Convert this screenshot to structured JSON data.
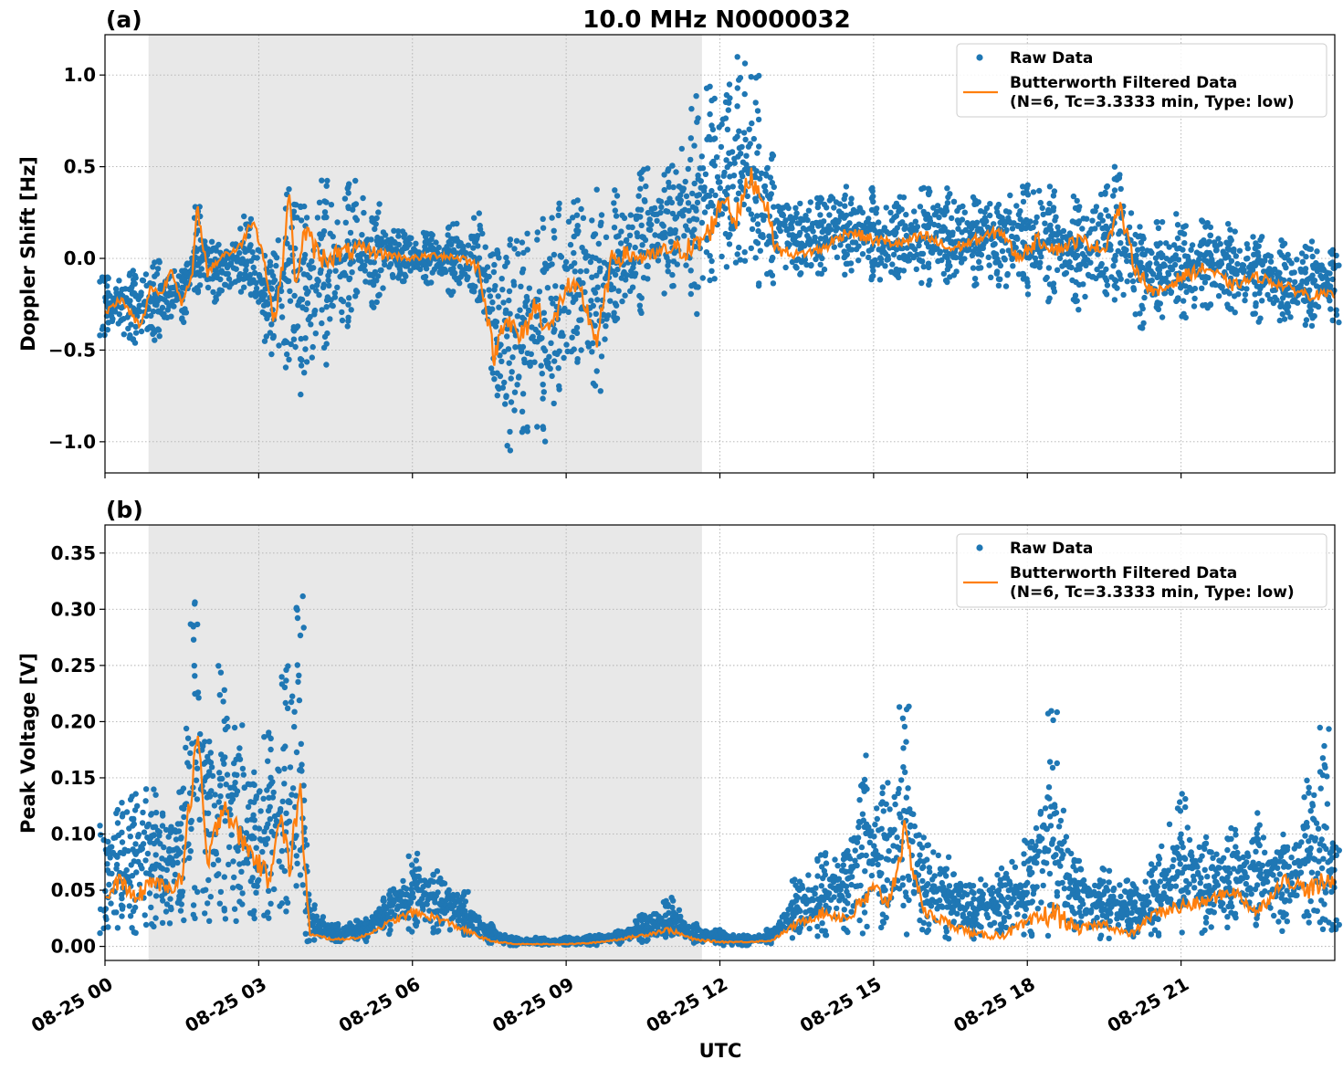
{
  "figure": {
    "title": "10.0 MHz N0000032",
    "xlabel": "UTC",
    "colors": {
      "raw": "#1f77b4",
      "filtered": "#ff7f0e",
      "night_shade": "#e8e8e8",
      "grid": "#b0b0b0"
    }
  },
  "chart_data": [
    {
      "type": "scatter+line",
      "panel_label": "(a)",
      "ylabel": "Doppler Shift [Hz]",
      "ylim": [
        -1.17,
        1.22
      ],
      "yticks": [
        1.0,
        0.5,
        0.0,
        -0.5,
        -1.0
      ],
      "ytick_labels": [
        "1.0",
        "0.5",
        "0.0",
        "−0.5",
        "−1.0"
      ],
      "xlim_hours": [
        0,
        24
      ],
      "xticks_hours": [
        0,
        3,
        6,
        9,
        12,
        15,
        18,
        21
      ],
      "xtick_labels": [],
      "shaded_region_hours": [
        0.85,
        11.65
      ],
      "grid": true,
      "legend": {
        "placement": "top-right",
        "entries": [
          "Raw Data",
          "Butterworth Filtered Data",
          "(N=6, Tc=3.3333 min, Type: low)"
        ]
      },
      "series": [
        {
          "name": "Butterworth Filtered Data (N=6, Tc=3.3333 min, Type: low)",
          "kind": "line",
          "x_hours": [
            0,
            0.3,
            0.5,
            0.7,
            0.9,
            1.1,
            1.3,
            1.5,
            1.7,
            1.8,
            2.0,
            2.3,
            2.6,
            2.9,
            3.1,
            3.3,
            3.5,
            3.6,
            3.7,
            3.9,
            4.2,
            4.5,
            5,
            5.5,
            6,
            6.5,
            7,
            7.3,
            7.6,
            7.8,
            8.1,
            8.4,
            8.7,
            9.0,
            9.3,
            9.6,
            9.9,
            10.2,
            10.6,
            11.0,
            11.5,
            11.8,
            12.1,
            12.3,
            12.6,
            12.9,
            13.1,
            13.5,
            14,
            14.5,
            15,
            15.5,
            16,
            16.5,
            17,
            17.5,
            17.8,
            18.2,
            18.6,
            19,
            19.5,
            19.8,
            20.1,
            20.5,
            21,
            21.5,
            22,
            22.5,
            23,
            23.5,
            24
          ],
          "y_hz": [
            -0.3,
            -0.22,
            -0.3,
            -0.38,
            -0.15,
            -0.2,
            -0.05,
            -0.25,
            -0.1,
            0.28,
            -0.08,
            0.02,
            0.05,
            0.22,
            0.0,
            -0.35,
            0.05,
            0.4,
            -0.15,
            0.15,
            0.0,
            0.02,
            0.05,
            0.02,
            0.0,
            0.02,
            0.0,
            -0.05,
            -0.55,
            -0.3,
            -0.45,
            -0.25,
            -0.4,
            -0.15,
            -0.2,
            -0.45,
            0.0,
            0.02,
            0.0,
            0.05,
            0.05,
            0.15,
            0.35,
            0.2,
            0.45,
            0.3,
            0.05,
            0.02,
            0.05,
            0.15,
            0.1,
            0.08,
            0.12,
            0.05,
            0.1,
            0.15,
            0.0,
            0.1,
            0.05,
            0.1,
            0.05,
            0.28,
            -0.05,
            -0.2,
            -0.1,
            -0.05,
            -0.15,
            -0.1,
            -0.15,
            -0.2,
            -0.2
          ]
        },
        {
          "name": "Raw Data",
          "kind": "scatter",
          "envelope_x_hours": [
            0,
            0.5,
            1,
            1.5,
            1.8,
            2.2,
            2.8,
            3.2,
            3.6,
            3.9,
            4.3,
            4.8,
            5.3,
            5.8,
            6.3,
            6.8,
            7.3,
            7.6,
            7.9,
            8.2,
            8.5,
            8.8,
            9.2,
            9.6,
            10,
            10.5,
            11,
            11.5,
            11.8,
            12.1,
            12.4,
            12.7,
            13,
            13.5,
            14,
            14.5,
            15,
            15.5,
            16,
            16.5,
            17,
            17.5,
            18,
            18.5,
            19,
            19.5,
            19.8,
            20.2,
            20.6,
            21,
            21.5,
            22,
            22.5,
            23,
            23.5,
            24
          ],
          "envelope_upper": [
            -0.1,
            -0.05,
            0.0,
            -0.05,
            0.32,
            0.1,
            0.25,
            0.05,
            0.46,
            0.35,
            0.45,
            0.45,
            0.3,
            0.15,
            0.15,
            0.2,
            0.25,
            0.1,
            0.15,
            0.2,
            0.25,
            0.3,
            0.35,
            0.4,
            0.45,
            0.5,
            0.55,
            0.9,
            1.0,
            0.95,
            1.1,
            1.0,
            0.6,
            0.3,
            0.4,
            0.4,
            0.4,
            0.35,
            0.45,
            0.4,
            0.35,
            0.35,
            0.45,
            0.4,
            0.35,
            0.4,
            0.57,
            0.25,
            0.2,
            0.25,
            0.25,
            0.2,
            0.15,
            0.1,
            0.1,
            0.05
          ],
          "envelope_lower": [
            -0.42,
            -0.48,
            -0.45,
            -0.35,
            -0.2,
            -0.25,
            -0.2,
            -0.55,
            -0.6,
            -0.75,
            -0.6,
            -0.4,
            -0.3,
            -0.15,
            -0.15,
            -0.2,
            -0.3,
            -0.85,
            -1.05,
            -0.95,
            -1.05,
            -0.8,
            -0.6,
            -0.75,
            -0.45,
            -0.3,
            -0.2,
            -0.35,
            -0.15,
            -0.1,
            -0.1,
            -0.15,
            -0.15,
            -0.1,
            -0.1,
            -0.1,
            -0.15,
            -0.15,
            -0.15,
            -0.15,
            -0.15,
            -0.2,
            -0.2,
            -0.25,
            -0.3,
            -0.2,
            -0.3,
            -0.4,
            -0.35,
            -0.35,
            -0.3,
            -0.3,
            -0.35,
            -0.35,
            -0.4,
            -0.35
          ]
        }
      ]
    },
    {
      "type": "scatter+line",
      "panel_label": "(b)",
      "ylabel": "Peak Voltage [V]",
      "ylim": [
        -0.0125,
        0.375
      ],
      "yticks": [
        0.35,
        0.3,
        0.25,
        0.2,
        0.15,
        0.1,
        0.05,
        0.0
      ],
      "ytick_labels": [
        "0.35",
        "0.30",
        "0.25",
        "0.20",
        "0.15",
        "0.10",
        "0.05",
        "0.00"
      ],
      "xlim_hours": [
        0,
        24
      ],
      "xticks_hours": [
        0,
        3,
        6,
        9,
        12,
        15,
        18,
        21
      ],
      "xtick_labels": [
        "08-25 00",
        "08-25 03",
        "08-25 06",
        "08-25 09",
        "08-25 12",
        "08-25 15",
        "08-25 18",
        "08-25 21"
      ],
      "shaded_region_hours": [
        0.85,
        11.65
      ],
      "grid": true,
      "legend": {
        "placement": "top-right",
        "entries": [
          "Raw Data",
          "Butterworth Filtered Data",
          "(N=6, Tc=3.3333 min, Type: low)"
        ]
      },
      "series": [
        {
          "name": "Butterworth Filtered Data (N=6, Tc=3.3333 min, Type: low)",
          "kind": "line",
          "x_hours": [
            0,
            0.3,
            0.6,
            0.9,
            1.2,
            1.5,
            1.8,
            2.0,
            2.3,
            2.6,
            2.9,
            3.2,
            3.4,
            3.6,
            3.8,
            4.0,
            4.5,
            5.0,
            5.5,
            6.0,
            6.5,
            7.0,
            7.5,
            8,
            8.5,
            9,
            9.5,
            10,
            10.5,
            11,
            11.5,
            12,
            12.5,
            13,
            13.5,
            14,
            14.5,
            15,
            15.3,
            15.6,
            16,
            16.5,
            17,
            17.5,
            18,
            18.5,
            19,
            19.5,
            20,
            20.5,
            21,
            21.5,
            22,
            22.5,
            23,
            23.5,
            24
          ],
          "y_v": [
            0.04,
            0.06,
            0.04,
            0.06,
            0.05,
            0.06,
            0.19,
            0.07,
            0.13,
            0.1,
            0.08,
            0.06,
            0.12,
            0.07,
            0.14,
            0.01,
            0.006,
            0.008,
            0.02,
            0.03,
            0.025,
            0.015,
            0.005,
            0.002,
            0.002,
            0.002,
            0.003,
            0.006,
            0.01,
            0.015,
            0.006,
            0.004,
            0.004,
            0.005,
            0.02,
            0.03,
            0.025,
            0.05,
            0.04,
            0.1,
            0.03,
            0.02,
            0.01,
            0.01,
            0.02,
            0.03,
            0.015,
            0.02,
            0.01,
            0.03,
            0.035,
            0.04,
            0.05,
            0.03,
            0.06,
            0.05,
            0.06
          ]
        },
        {
          "name": "Raw Data",
          "kind": "scatter",
          "envelope_x_hours": [
            0,
            0.3,
            0.6,
            0.9,
            1.2,
            1.5,
            1.75,
            2.0,
            2.3,
            2.6,
            2.9,
            3.2,
            3.5,
            3.8,
            4.0,
            4.5,
            5.0,
            5.5,
            6.0,
            6.5,
            7.0,
            7.5,
            8,
            8.5,
            9,
            9.5,
            10,
            10.5,
            11,
            11.5,
            12,
            12.5,
            13,
            13.5,
            14,
            14.5,
            14.8,
            15.2,
            15.6,
            16,
            16.5,
            17,
            17.5,
            18,
            18.5,
            19,
            19.5,
            20,
            20.5,
            21,
            21.5,
            22,
            22.5,
            23,
            23.5,
            23.8,
            24
          ],
          "envelope_upper": [
            0.11,
            0.13,
            0.14,
            0.15,
            0.12,
            0.14,
            0.355,
            0.2,
            0.25,
            0.21,
            0.16,
            0.2,
            0.25,
            0.32,
            0.04,
            0.02,
            0.025,
            0.05,
            0.085,
            0.07,
            0.05,
            0.02,
            0.008,
            0.008,
            0.008,
            0.01,
            0.015,
            0.03,
            0.045,
            0.02,
            0.015,
            0.01,
            0.015,
            0.06,
            0.09,
            0.1,
            0.17,
            0.15,
            0.215,
            0.1,
            0.08,
            0.06,
            0.07,
            0.1,
            0.21,
            0.08,
            0.07,
            0.06,
            0.08,
            0.14,
            0.1,
            0.11,
            0.12,
            0.1,
            0.15,
            0.195,
            0.09
          ],
          "envelope_lower": [
            0.01,
            0.015,
            0.012,
            0.012,
            0.015,
            0.015,
            0.02,
            0.02,
            0.02,
            0.02,
            0.02,
            0.02,
            0.02,
            0.03,
            0.004,
            0.003,
            0.004,
            0.01,
            0.012,
            0.012,
            0.008,
            0.003,
            0.001,
            0.001,
            0.001,
            0.001,
            0.002,
            0.003,
            0.005,
            0.002,
            0.001,
            0.001,
            0.002,
            0.005,
            0.008,
            0.008,
            0.01,
            0.01,
            0.01,
            0.008,
            0.006,
            0.005,
            0.005,
            0.006,
            0.008,
            0.006,
            0.006,
            0.005,
            0.008,
            0.01,
            0.012,
            0.012,
            0.012,
            0.012,
            0.012,
            0.012,
            0.012
          ]
        }
      ]
    }
  ]
}
